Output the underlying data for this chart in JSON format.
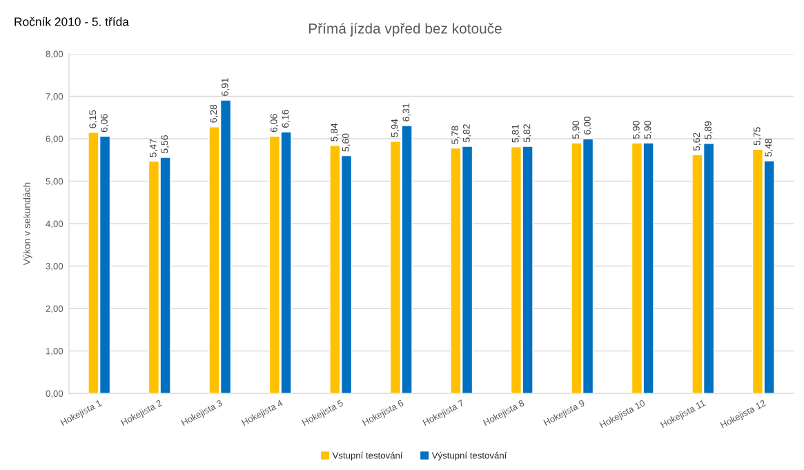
{
  "chart_data": {
    "type": "bar",
    "title": "Přímá jízda vpřed bez kotouče",
    "subtitle": "Ročník 2010 - 5. třída",
    "ylabel": "Výkon v sekundách",
    "categories": [
      "Hokejista 1",
      "Hokejista 2",
      "Hokejista 3",
      "Hokejista 4",
      "Hokejista 5",
      "Hokejista 6",
      "Hokejista 7",
      "Hokejista 8",
      "Hokejista 9",
      "Hokejista 10",
      "Hokejista 11",
      "Hokejista 12"
    ],
    "series": [
      {
        "name": "Vstupní testování",
        "color": "#ffc000",
        "values": [
          6.15,
          5.47,
          6.28,
          6.06,
          5.84,
          5.94,
          5.78,
          5.81,
          5.9,
          5.9,
          5.62,
          5.75
        ],
        "value_labels": [
          "6,15",
          "5,47",
          "6,28",
          "6,06",
          "5,84",
          "5,94",
          "5,78",
          "5,81",
          "5,90",
          "5,90",
          "5,62",
          "5,75"
        ]
      },
      {
        "name": "Výstupní testování",
        "color": "#0070c0",
        "values": [
          6.06,
          5.56,
          6.91,
          6.16,
          5.6,
          6.31,
          5.82,
          5.82,
          6.0,
          5.9,
          5.89,
          5.48
        ],
        "value_labels": [
          "6,06",
          "5,56",
          "6,91",
          "6,16",
          "5,60",
          "6,31",
          "5,82",
          "5,82",
          "6,00",
          "5,90",
          "5,89",
          "5,48"
        ]
      }
    ],
    "ylim": [
      0,
      8
    ],
    "yticks": [
      {
        "value": 0,
        "label": "0,00"
      },
      {
        "value": 1,
        "label": "1,00"
      },
      {
        "value": 2,
        "label": "2,00"
      },
      {
        "value": 3,
        "label": "3,00"
      },
      {
        "value": 4,
        "label": "4,00"
      },
      {
        "value": 5,
        "label": "5,00"
      },
      {
        "value": 6,
        "label": "6,00"
      },
      {
        "value": 7,
        "label": "7,00"
      },
      {
        "value": 8,
        "label": "8,00"
      }
    ],
    "grid": "y",
    "legend": "bottom"
  }
}
